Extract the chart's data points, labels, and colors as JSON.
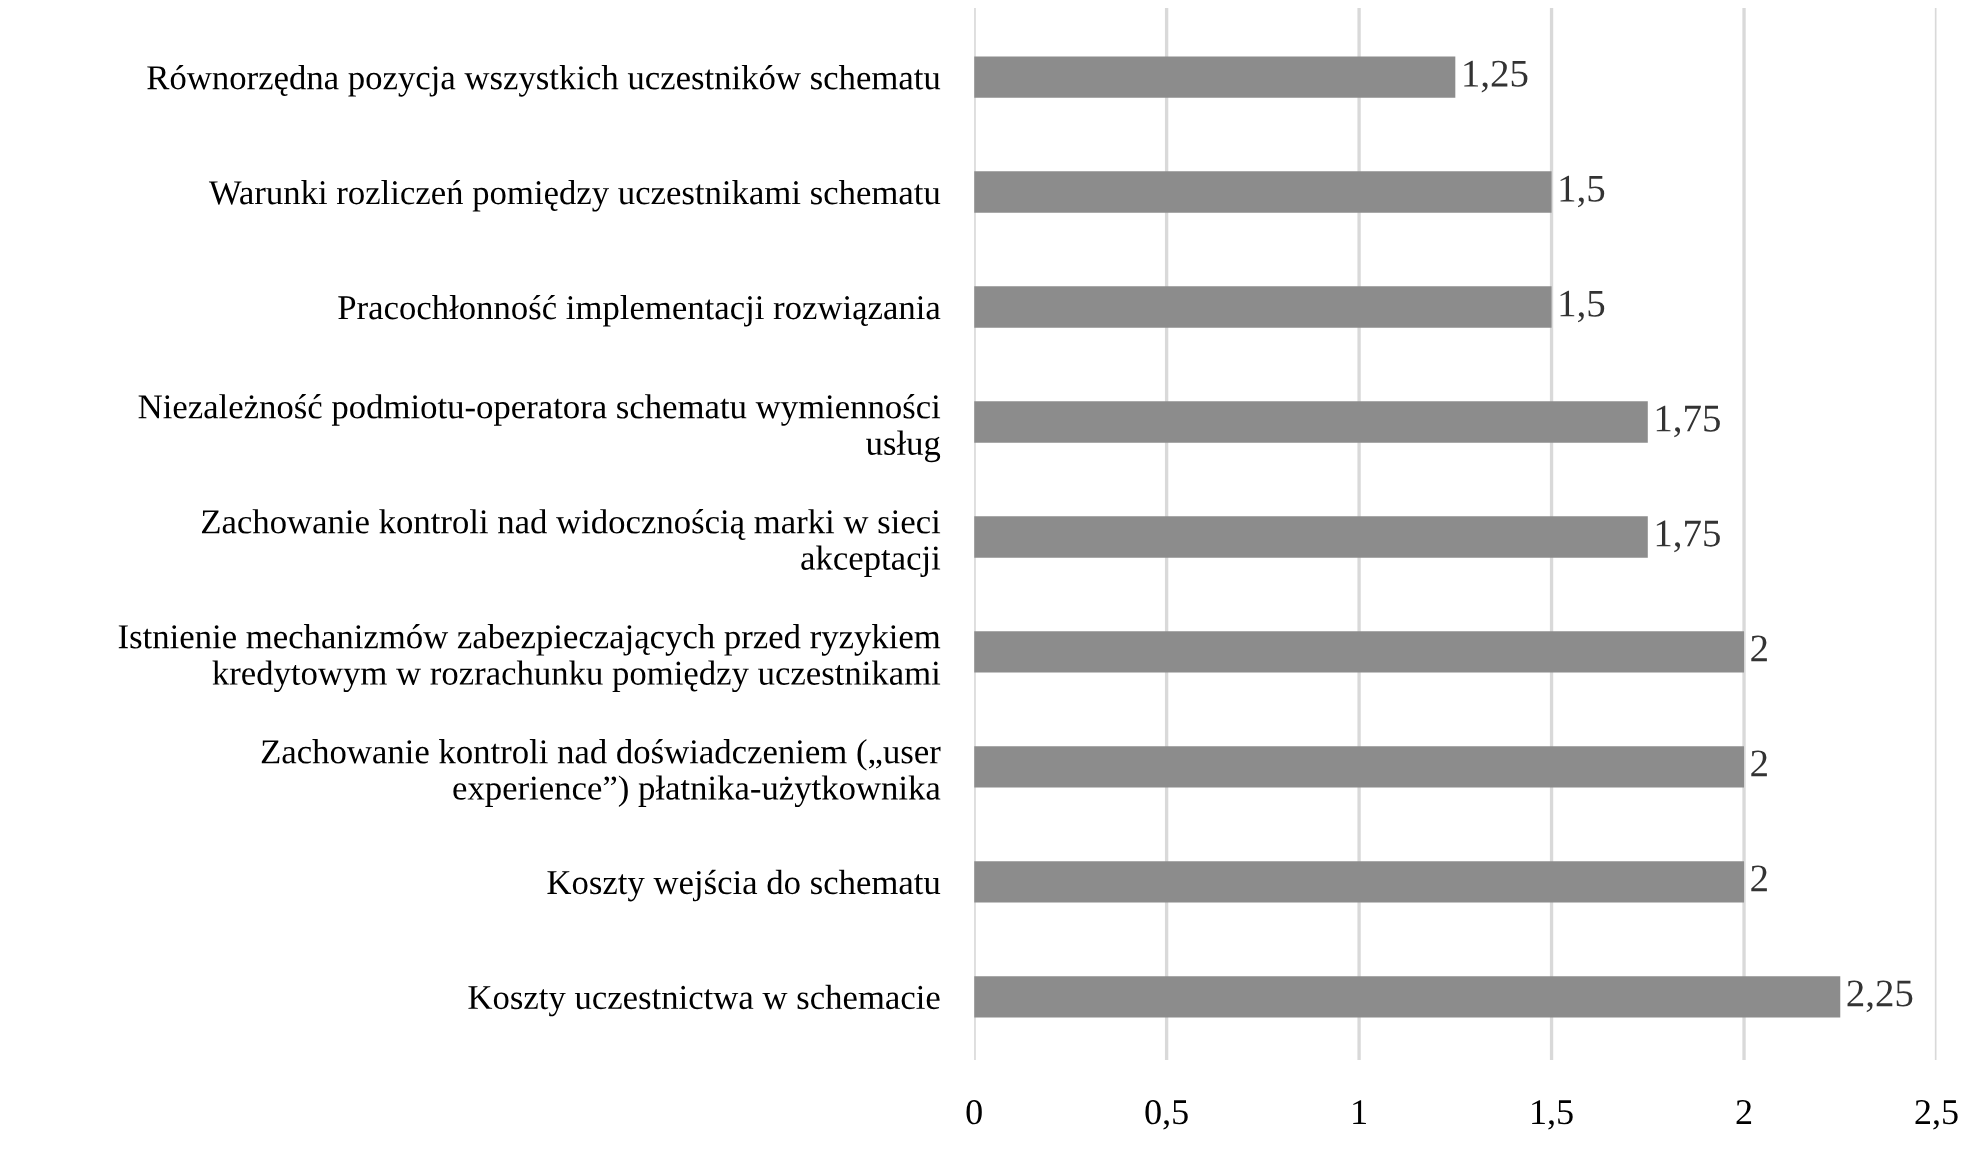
{
  "chart_data": {
    "type": "bar",
    "orientation": "horizontal",
    "categories": [
      "Równorzędna pozycja wszystkich uczestników schematu",
      "Warunki rozliczeń pomiędzy uczestnikami schematu",
      "Pracochłonność implementacji rozwiązania",
      "Niezależność podmiotu-operatora schematu wymienności\nusług",
      "Zachowanie kontroli nad widocznością marki w sieci\nakceptacji",
      "Istnienie mechanizmów zabezpieczających przed ryzykiem\nkredytowym w rozrachunku pomiędzy uczestnikami",
      "Zachowanie kontroli nad doświadczeniem („user\nexperience”) płatnika-użytkownika",
      "Koszty wejścia do schematu",
      "Koszty uczestnictwa w schemacie"
    ],
    "values": [
      1.25,
      1.5,
      1.5,
      1.75,
      1.75,
      2,
      2,
      2,
      2.25
    ],
    "value_labels": [
      "1,25",
      "1,5",
      "1,5",
      "1,75",
      "1,75",
      "2",
      "2",
      "2",
      "2,25"
    ],
    "color": "#8c8c8c",
    "xlim": [
      0,
      2.5
    ],
    "xticks": [
      0,
      {
        "value": 0.5,
        "label": "0,5"
      },
      1,
      {
        "value": 1.5,
        "label": "1,5"
      },
      2,
      {
        "value": 2.5,
        "label": "2,5"
      }
    ],
    "grid": "x",
    "legend": false
  }
}
